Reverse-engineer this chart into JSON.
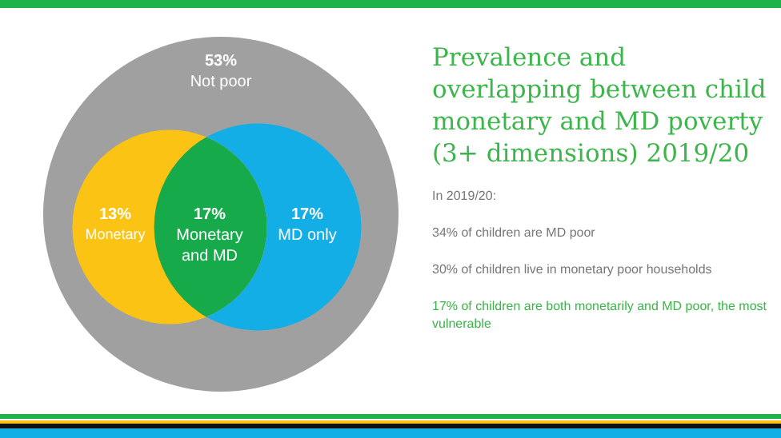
{
  "chart_data": {
    "type": "other",
    "title": "Prevalence and overlapping between child monetary and MD poverty (3+ dimensions) 2019/20",
    "categories": [
      "Not poor",
      "Monetary",
      "Monetary and MD",
      "MD only"
    ],
    "values": [
      53,
      13,
      17,
      17
    ],
    "value_labels": [
      "53%",
      "13%",
      "17%",
      "17%"
    ],
    "colors": [
      "#a0a0a0",
      "#fbc415",
      "#16aa4b",
      "#13aee5"
    ],
    "annotations": [
      "In 2019/20:",
      "34% of children are MD poor",
      "30% of children live in monetary poor households",
      "17% of children are both monetarily and MD poor, the most vulnerable"
    ]
  }
}
